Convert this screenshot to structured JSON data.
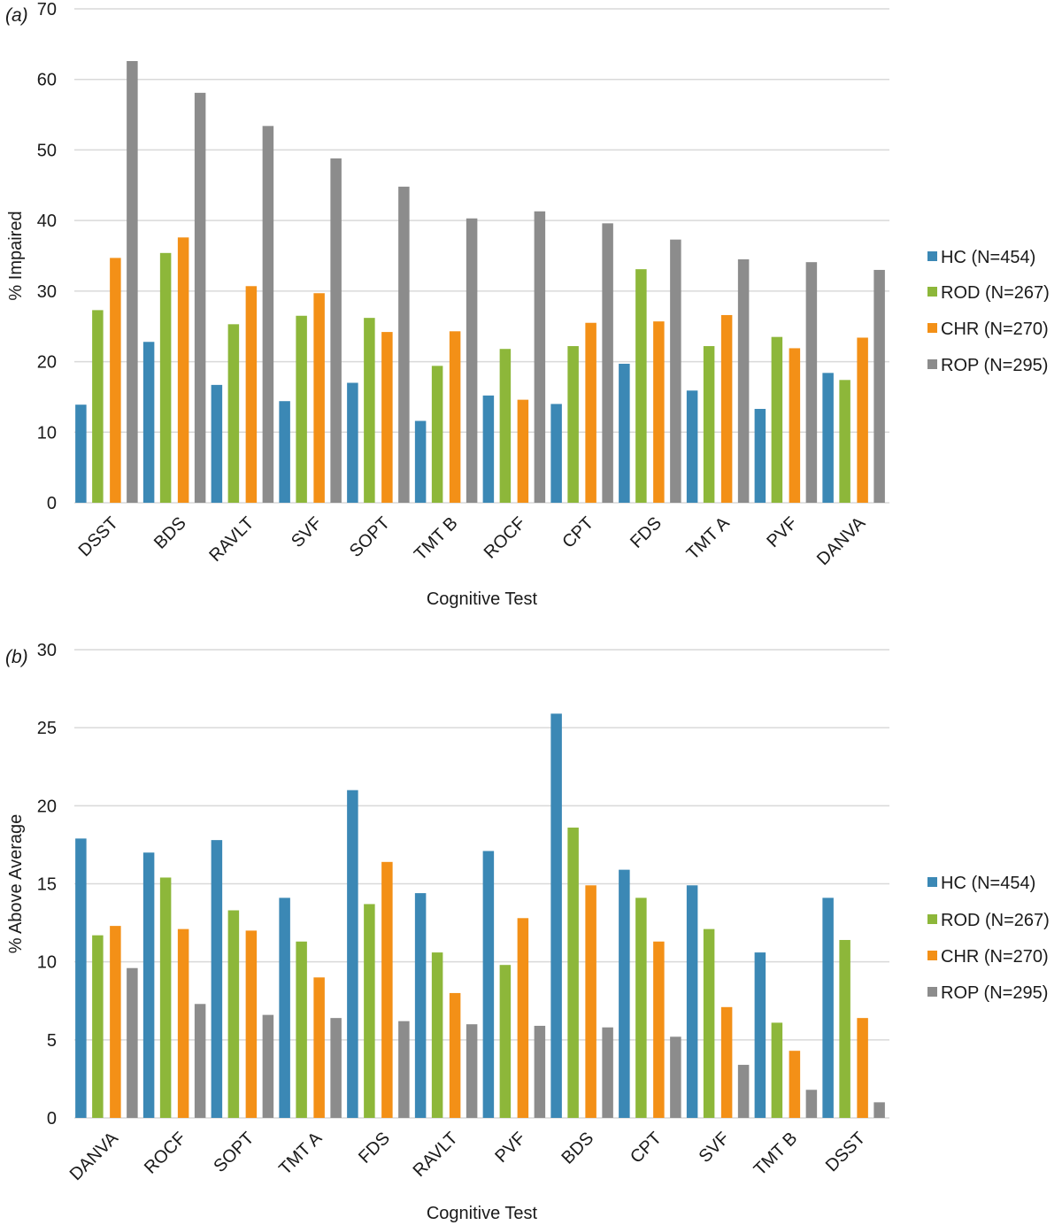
{
  "colors": {
    "HC": "#3b88b5",
    "ROD": "#8db73a",
    "CHR": "#f39017",
    "ROP": "#8c8c8c",
    "grid": "#d9d9d9"
  },
  "chart_data": [
    {
      "type": "bar",
      "panel_label": "(a)",
      "xlabel": "Cognitive Test",
      "ylabel": "% Impaired",
      "ylim": [
        0,
        70
      ],
      "yticks": [
        0,
        10,
        20,
        30,
        40,
        50,
        60,
        70
      ],
      "grid": true,
      "legend_position": "right",
      "categories": [
        "DSST",
        "BDS",
        "RAVLT",
        "SVF",
        "SOPT",
        "TMT B",
        "ROCF",
        "CPT",
        "FDS",
        "TMT A",
        "PVF",
        "DANVA"
      ],
      "series": [
        {
          "name": "HC (N=454)",
          "color_key": "HC",
          "values": [
            13.9,
            22.8,
            16.7,
            14.4,
            17.0,
            11.6,
            15.2,
            14.0,
            19.7,
            15.9,
            13.3,
            18.4
          ]
        },
        {
          "name": "ROD (N=267)",
          "color_key": "ROD",
          "values": [
            27.3,
            35.4,
            25.3,
            26.5,
            26.2,
            19.4,
            21.8,
            22.2,
            33.1,
            22.2,
            23.5,
            17.4
          ]
        },
        {
          "name": "CHR (N=270)",
          "color_key": "CHR",
          "values": [
            34.7,
            37.6,
            30.7,
            29.7,
            24.2,
            24.3,
            14.6,
            25.5,
            25.7,
            26.6,
            21.9,
            23.4
          ]
        },
        {
          "name": "ROP (N=295)",
          "color_key": "ROP",
          "values": [
            62.6,
            58.1,
            53.4,
            48.8,
            44.8,
            40.3,
            41.3,
            39.6,
            37.3,
            34.5,
            34.1,
            33.0
          ]
        }
      ]
    },
    {
      "type": "bar",
      "panel_label": "(b)",
      "xlabel": "Cognitive Test",
      "ylabel": "% Above Average",
      "ylim": [
        0,
        30
      ],
      "yticks": [
        0,
        5,
        10,
        15,
        20,
        25,
        30
      ],
      "grid": true,
      "legend_position": "right",
      "categories": [
        "DANVA",
        "ROCF",
        "SOPT",
        "TMT A",
        "FDS",
        "RAVLT",
        "PVF",
        "BDS",
        "CPT",
        "SVF",
        "TMT B",
        "DSST"
      ],
      "series": [
        {
          "name": "HC (N=454)",
          "color_key": "HC",
          "values": [
            17.9,
            17.0,
            17.8,
            14.1,
            21.0,
            14.4,
            17.1,
            25.9,
            15.9,
            14.9,
            10.6,
            14.1
          ]
        },
        {
          "name": "ROD (N=267)",
          "color_key": "ROD",
          "values": [
            11.7,
            15.4,
            13.3,
            11.3,
            13.7,
            10.6,
            9.8,
            18.6,
            14.1,
            12.1,
            6.1,
            11.4
          ]
        },
        {
          "name": "CHR (N=270)",
          "color_key": "CHR",
          "values": [
            12.3,
            12.1,
            12.0,
            9.0,
            16.4,
            8.0,
            12.8,
            14.9,
            11.3,
            7.1,
            4.3,
            6.4
          ]
        },
        {
          "name": "ROP (N=295)",
          "color_key": "ROP",
          "values": [
            9.6,
            7.3,
            6.6,
            6.4,
            6.2,
            6.0,
            5.9,
            5.8,
            5.2,
            3.4,
            1.8,
            1.0
          ]
        }
      ]
    }
  ]
}
